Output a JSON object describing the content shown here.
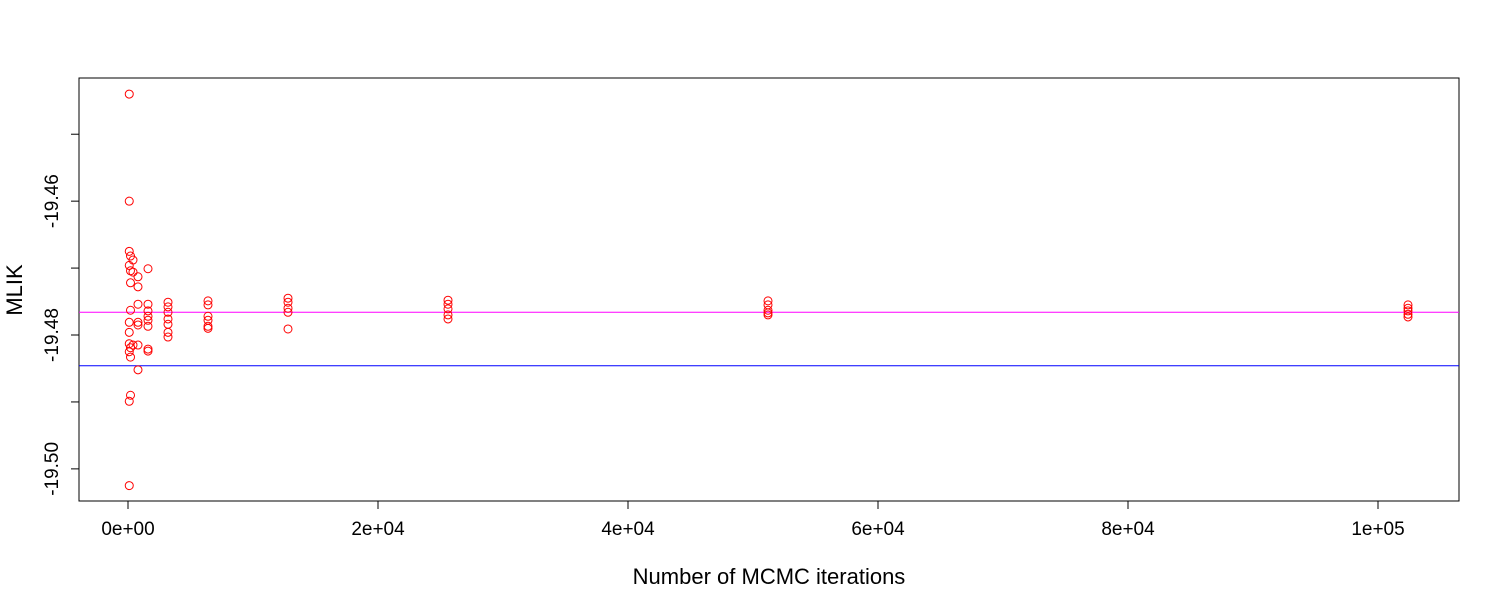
{
  "chart_data": {
    "type": "scatter",
    "xlabel": "Number of MCMC iterations",
    "ylabel": "MLIK",
    "color": "#ff0000",
    "x": [
      100,
      100,
      100,
      100,
      100,
      100,
      100,
      100,
      100,
      100,
      200,
      200,
      200,
      200,
      200,
      200,
      200,
      400,
      400,
      400,
      800,
      800,
      800,
      800,
      800,
      800,
      800,
      1600,
      1600,
      1600,
      1600,
      1600,
      1600,
      1600,
      1600,
      3200,
      3200,
      3200,
      3200,
      3200,
      3200,
      3200,
      6400,
      6400,
      6400,
      6400,
      6400,
      6400,
      12800,
      12800,
      12800,
      12800,
      12800,
      25600,
      25600,
      25600,
      25600,
      25600,
      51200,
      51200,
      51200,
      51200,
      51200,
      102400,
      102400,
      102400,
      102400,
      102400
    ],
    "y": [
      -19.444,
      -19.46,
      -19.4675,
      -19.4696,
      -19.4781,
      -19.4796,
      -19.4813,
      -19.4825,
      -19.4899,
      -19.5025,
      -19.4682,
      -19.4704,
      -19.4722,
      -19.4763,
      -19.4819,
      -19.4833,
      -19.489,
      -19.4688,
      -19.4706,
      -19.4815,
      -19.4713,
      -19.4728,
      -19.4754,
      -19.4781,
      -19.4785,
      -19.4815,
      -19.4852,
      -19.4701,
      -19.4754,
      -19.4764,
      -19.4772,
      -19.4778,
      -19.4787,
      -19.4821,
      -19.4824,
      -19.4751,
      -19.4758,
      -19.4766,
      -19.4776,
      -19.4784,
      -19.4796,
      -19.4803,
      -19.4749,
      -19.4755,
      -19.4772,
      -19.4778,
      -19.4787,
      -19.479,
      -19.4745,
      -19.4751,
      -19.476,
      -19.4766,
      -19.4791,
      -19.4748,
      -19.4754,
      -19.4761,
      -19.477,
      -19.4776,
      -19.4749,
      -19.4755,
      -19.4763,
      -19.4767,
      -19.477,
      -19.4755,
      -19.476,
      -19.4764,
      -19.4769,
      -19.4773
    ],
    "xlim": [
      -3920,
      106480
    ],
    "ylim": [
      -19.5048,
      -19.4416
    ],
    "xticks": [
      {
        "value": 0,
        "label": "0e+00"
      },
      {
        "value": 20000,
        "label": "2e+04"
      },
      {
        "value": 40000,
        "label": "4e+04"
      },
      {
        "value": 60000,
        "label": "6e+04"
      },
      {
        "value": 80000,
        "label": "8e+04"
      },
      {
        "value": 100000,
        "label": "1e+05"
      }
    ],
    "yticks": [
      -19.46,
      -19.48,
      {
        "value": -19.5,
        "label": "-19.50"
      }
    ],
    "yminor_ticks": [
      -19.45,
      -19.47,
      -19.49
    ],
    "hlines": [
      {
        "value": -19.4766,
        "color": "#ff00ff"
      },
      {
        "value": -19.4846,
        "color": "#0000ff"
      }
    ]
  }
}
